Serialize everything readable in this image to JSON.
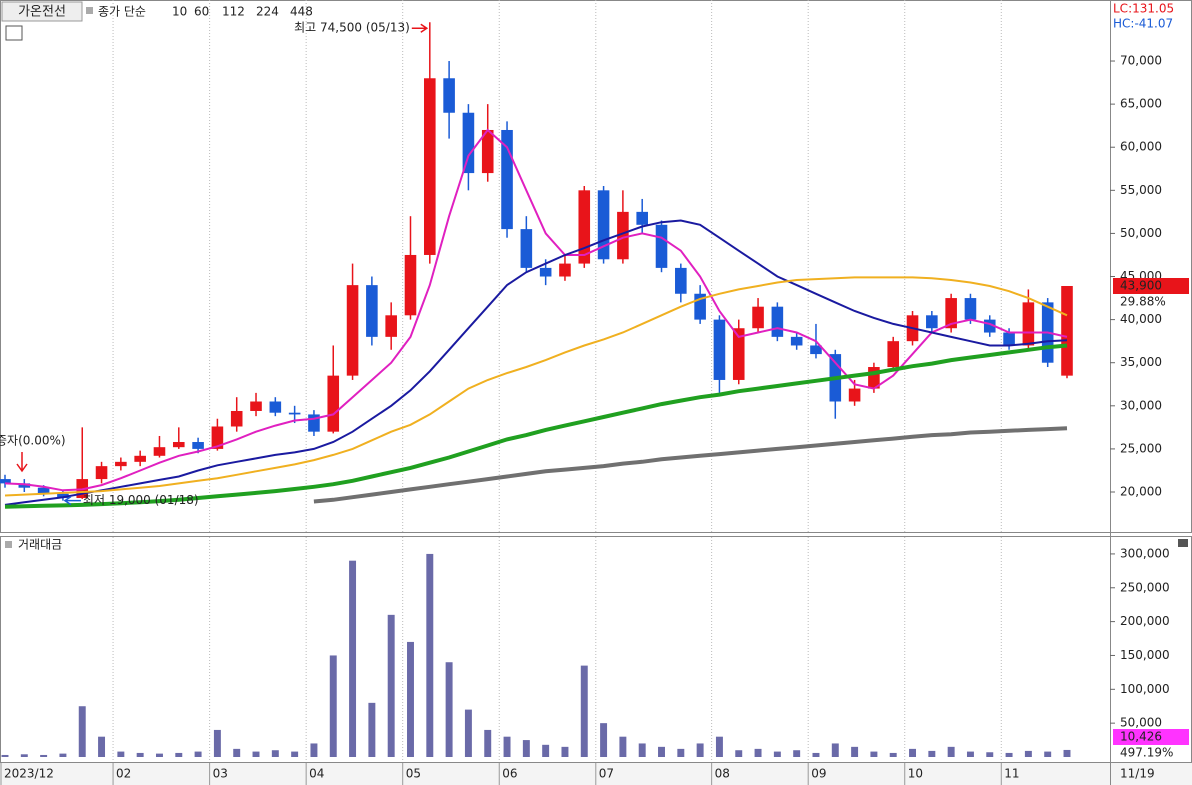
{
  "header": {
    "stock_name": "가온전선",
    "ma_type": "종가 단순",
    "lc": "LC:131.05",
    "hc": "HC:-41.07"
  },
  "chart_data": [
    {
      "type": "candlestick",
      "categories": [
        "2023/12",
        null,
        null,
        null,
        null,
        null,
        "02",
        null,
        null,
        null,
        null,
        "03",
        null,
        null,
        null,
        null,
        "04",
        null,
        null,
        null,
        null,
        "05",
        null,
        null,
        null,
        null,
        "06",
        null,
        null,
        null,
        null,
        "07",
        null,
        null,
        null,
        null,
        null,
        "08",
        null,
        null,
        null,
        null,
        "09",
        null,
        null,
        null,
        null,
        "10",
        null,
        null,
        null,
        null,
        "11",
        null,
        null,
        null
      ],
      "x_end_label": "11/19",
      "open": [
        21500,
        21000,
        20500,
        19800,
        19300,
        21500,
        23000,
        23500,
        24200,
        25200,
        25800,
        25000,
        27600,
        29400,
        30500,
        29200,
        29000,
        27000,
        33500,
        44000,
        38000,
        40500,
        47500,
        68000,
        64000,
        57000,
        62000,
        50500,
        46000,
        45000,
        46500,
        55000,
        47000,
        52500,
        51000,
        46000,
        43000,
        40000,
        33000,
        39000,
        41500,
        38000,
        37000,
        36000,
        30500,
        32000,
        34500,
        37500,
        40500,
        39000,
        42500,
        40000,
        38500,
        37000,
        42000,
        33500
      ],
      "high": [
        22000,
        21500,
        20800,
        20200,
        27500,
        23500,
        24000,
        24800,
        26500,
        27500,
        26300,
        28500,
        31000,
        31500,
        31000,
        30000,
        29500,
        37000,
        46500,
        45000,
        42000,
        52000,
        74500,
        70000,
        65000,
        65000,
        63000,
        52000,
        47000,
        47500,
        55500,
        55500,
        55000,
        54000,
        51500,
        46500,
        44000,
        40500,
        40000,
        42500,
        42000,
        38500,
        39500,
        36500,
        33000,
        35000,
        38000,
        41000,
        41000,
        43000,
        43000,
        40500,
        39000,
        43500,
        42500,
        43900
      ],
      "low": [
        20500,
        20000,
        19500,
        19000,
        19200,
        21000,
        22500,
        23000,
        24000,
        25000,
        24500,
        24800,
        27000,
        28800,
        28800,
        28000,
        26500,
        26800,
        33000,
        37000,
        36500,
        40000,
        46500,
        61000,
        55000,
        56000,
        49500,
        45500,
        44000,
        44500,
        46000,
        46500,
        46500,
        50000,
        45500,
        42000,
        39500,
        31500,
        32500,
        38500,
        37500,
        36500,
        35500,
        28500,
        30000,
        31500,
        34000,
        37000,
        38500,
        38500,
        39500,
        38000,
        36500,
        36500,
        34500,
        33200
      ],
      "close": [
        21000,
        20500,
        19800,
        19300,
        21500,
        23000,
        23500,
        24200,
        25200,
        25800,
        25000,
        27600,
        29400,
        30500,
        29200,
        29000,
        27000,
        33500,
        44000,
        38000,
        40500,
        47500,
        68000,
        64000,
        57000,
        62000,
        50500,
        46000,
        45000,
        46500,
        55000,
        47000,
        52500,
        51000,
        46000,
        43000,
        40000,
        33000,
        39000,
        41500,
        38000,
        37000,
        36000,
        30500,
        32000,
        34500,
        37500,
        40500,
        39000,
        42500,
        40000,
        38500,
        37000,
        42000,
        35000,
        43900
      ],
      "up_color": "#e8141a",
      "down_color": "#1a5bd6",
      "series": [
        {
          "name": "10",
          "color": "#e020c0",
          "values": [
            21000,
            20900,
            20600,
            20200,
            20300,
            20800,
            21600,
            22500,
            23400,
            24200,
            24700,
            25300,
            26100,
            27000,
            27700,
            28300,
            28500,
            29000,
            31000,
            33000,
            35000,
            38000,
            44000,
            52000,
            59000,
            62000,
            60000,
            55000,
            50000,
            47500,
            47500,
            48500,
            49500,
            50000,
            49500,
            48000,
            45000,
            41000,
            38000,
            38500,
            39000,
            38500,
            37500,
            35000,
            32500,
            32000,
            33500,
            36000,
            38500,
            39500,
            40000,
            39500,
            38500,
            38500,
            38500,
            38000
          ]
        },
        {
          "name": "60",
          "color": "#1a1aa0",
          "values": [
            18500,
            18800,
            19100,
            19400,
            19800,
            20200,
            20600,
            21000,
            21400,
            21800,
            22500,
            23100,
            23500,
            23900,
            24300,
            24600,
            25000,
            25800,
            27000,
            28500,
            30000,
            31800,
            34000,
            36500,
            39000,
            41500,
            44000,
            45500,
            46500,
            47500,
            48300,
            49200,
            50000,
            50800,
            51300,
            51500,
            51000,
            49500,
            48000,
            46500,
            45000,
            44000,
            43000,
            42000,
            41000,
            40200,
            39500,
            39000,
            38500,
            38000,
            37500,
            37000,
            37000,
            37200,
            37500,
            37600
          ]
        },
        {
          "name": "112",
          "color": "#f0b020",
          "values": [
            19600,
            19700,
            19800,
            19900,
            20000,
            20100,
            20300,
            20500,
            20700,
            21000,
            21300,
            21600,
            22000,
            22400,
            22800,
            23200,
            23700,
            24300,
            25000,
            26000,
            27000,
            27800,
            29000,
            30500,
            32000,
            33000,
            33800,
            34500,
            35300,
            36200,
            37000,
            37700,
            38500,
            39500,
            40500,
            41500,
            42400,
            43000,
            43500,
            43900,
            44300,
            44600,
            44700,
            44800,
            44900,
            44900,
            44900,
            44900,
            44800,
            44600,
            44300,
            43900,
            43300,
            42500,
            41500,
            40500
          ]
        },
        {
          "name": "224",
          "color": "#20a020",
          "values": [
            18300,
            18350,
            18400,
            18450,
            18500,
            18600,
            18700,
            18800,
            18950,
            19100,
            19300,
            19500,
            19700,
            19900,
            20100,
            20350,
            20600,
            20900,
            21300,
            21800,
            22300,
            22800,
            23400,
            24000,
            24700,
            25400,
            26100,
            26600,
            27200,
            27700,
            28200,
            28700,
            29200,
            29700,
            30200,
            30600,
            31000,
            31300,
            31700,
            32000,
            32300,
            32600,
            32900,
            33200,
            33500,
            33800,
            34200,
            34600,
            34900,
            35300,
            35600,
            35900,
            36200,
            36500,
            36800,
            37000
          ]
        },
        {
          "name": "448",
          "color": "#707070",
          "values": [
            null,
            null,
            null,
            null,
            null,
            null,
            null,
            null,
            null,
            null,
            null,
            null,
            null,
            null,
            null,
            null,
            18900,
            19100,
            19400,
            19700,
            20000,
            20300,
            20600,
            20900,
            21200,
            21500,
            21800,
            22100,
            22400,
            22600,
            22800,
            23000,
            23300,
            23500,
            23800,
            24000,
            24200,
            24400,
            24600,
            24800,
            25000,
            25200,
            25400,
            25600,
            25800,
            26000,
            26200,
            26400,
            26600,
            26700,
            26900,
            27000,
            27100,
            27200,
            27300,
            27400
          ]
        }
      ],
      "ylim": [
        15360,
        77080
      ],
      "yticks": [
        {
          "value": 20000,
          "label": "20,000"
        },
        {
          "value": 25000,
          "label": "25,000"
        },
        {
          "value": 30000,
          "label": "30,000"
        },
        {
          "value": 35000,
          "label": "35,000"
        },
        {
          "value": 40000,
          "label": "40,000"
        },
        {
          "value": 45000,
          "label": "45,000"
        },
        {
          "value": 50000,
          "label": "50,000"
        },
        {
          "value": 55000,
          "label": "55,000"
        },
        {
          "value": 60000,
          "label": "60,000"
        },
        {
          "value": 65000,
          "label": "65,000"
        },
        {
          "value": 70000,
          "label": "70,000"
        }
      ],
      "high_annotation": "최고 74,500 (05/13)",
      "low_annotation": "최저 19,000 (01/18)",
      "event_annotation": "증자(0.00%)",
      "last_price_label": "43,900",
      "change_label": "29.88%"
    },
    {
      "type": "bar",
      "title": "거래대금",
      "color": "#6a6aa8",
      "values": [
        3000,
        4000,
        3000,
        5000,
        75000,
        30000,
        8000,
        6000,
        5000,
        6000,
        8000,
        40000,
        12000,
        8000,
        10000,
        8000,
        20000,
        150000,
        290000,
        80000,
        210000,
        170000,
        300000,
        140000,
        70000,
        40000,
        30000,
        25000,
        18000,
        15000,
        135000,
        50000,
        30000,
        20000,
        15000,
        12000,
        20000,
        30000,
        10000,
        12000,
        8000,
        10000,
        6000,
        20000,
        15000,
        8000,
        6000,
        12000,
        9000,
        15000,
        8000,
        7000,
        6000,
        9000,
        8000,
        10426
      ],
      "ylim": [
        0,
        325000
      ],
      "yticks": [
        {
          "value": 50000,
          "label": "50,000"
        },
        {
          "value": 100000,
          "label": "100,000"
        },
        {
          "value": 150000,
          "label": "150,000"
        },
        {
          "value": 200000,
          "label": "200,000"
        },
        {
          "value": 250000,
          "label": "250,000"
        },
        {
          "value": 300000,
          "label": "300,000"
        }
      ],
      "last_value_label": "10,426",
      "change_label": "497.19%"
    }
  ]
}
